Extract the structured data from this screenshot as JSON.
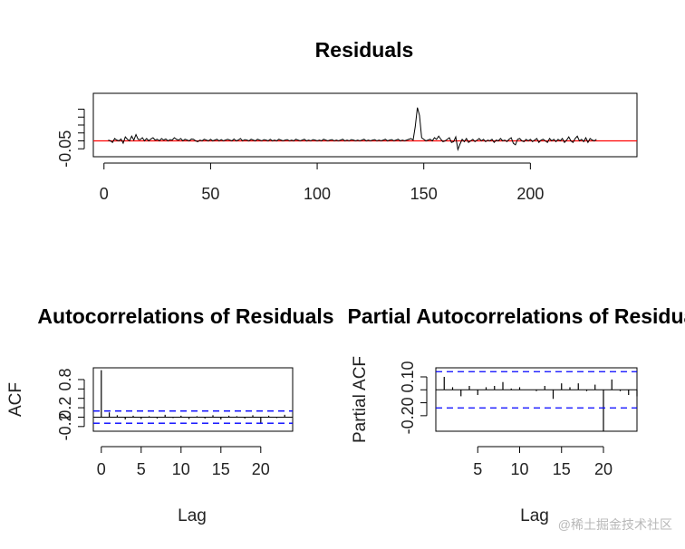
{
  "chart_data": [
    {
      "type": "line",
      "title": "Residuals",
      "xlabel": "",
      "ylabel": "",
      "xlim": [
        -5,
        250
      ],
      "ylim": [
        -0.1,
        0.3
      ],
      "x_ticks": [
        0,
        50,
        100,
        150,
        200
      ],
      "x_tick_labels": [
        "0",
        "50",
        "100",
        "150",
        "200"
      ],
      "y_ticks": [
        -0.05
      ],
      "y_tick_labels": [
        "-0.05"
      ],
      "y_minor_ticks": [
        0.0,
        0.05,
        0.1,
        0.15,
        0.2
      ],
      "reference_line": {
        "y": 0,
        "color": "#ff0000"
      },
      "series_color": "#000000",
      "x_start": 2,
      "x_step": 1,
      "values": [
        0.005,
        0.0,
        -0.01,
        0.015,
        0.005,
        0.0,
        0.012,
        -0.015,
        0.025,
        0.01,
        0.0,
        0.03,
        0.005,
        0.04,
        0.01,
        0.008,
        0.02,
        0.0,
        0.015,
        0.0,
        0.012,
        0.02,
        0.005,
        0.01,
        0.0,
        0.015,
        0.005,
        0.012,
        0.0,
        0.008,
        0.005,
        0.02,
        0.01,
        0.005,
        0.015,
        0.0,
        0.01,
        0.005,
        0.0,
        0.012,
        0.01,
        0.0,
        -0.005,
        0.005,
        0.0,
        0.01,
        0.005,
        0.0,
        0.01,
        0.0,
        0.005,
        0.01,
        0.0,
        0.008,
        0.0,
        0.005,
        0.01,
        0.005,
        0.0,
        0.012,
        0.0,
        0.005,
        0.015,
        0.0,
        0.008,
        0.005,
        0.0,
        0.01,
        0.005,
        0.0,
        0.01,
        0.005,
        0.0,
        0.008,
        0.005,
        0.0,
        0.01,
        0.0,
        0.005,
        0.0,
        0.01,
        0.005,
        0.0,
        0.005,
        0.008,
        0.0,
        0.005,
        0.0,
        0.01,
        0.005,
        0.0,
        0.005,
        0.01,
        0.0,
        0.005,
        0.0,
        0.008,
        0.005,
        0.0,
        0.005,
        0.0,
        0.01,
        0.005,
        0.0,
        0.005,
        0.008,
        0.0,
        0.005,
        0.0,
        0.005,
        0.01,
        0.0,
        0.005,
        0.0,
        0.008,
        0.005,
        0.0,
        0.005,
        0.0,
        0.005,
        0.01,
        0.0,
        0.005,
        0.0,
        0.005,
        0.008,
        0.0,
        0.005,
        0.0,
        0.005,
        0.01,
        0.0,
        0.005,
        0.008,
        0.0,
        0.005,
        0.01,
        0.0,
        0.005,
        0.0,
        0.005,
        0.01,
        0.015,
        0.005,
        0.09,
        0.21,
        0.16,
        0.02,
        0.01,
        0.0,
        0.005,
        0.01,
        0.0,
        0.02,
        0.01,
        0.03,
        0.01,
        -0.005,
        0.0,
        0.01,
        0.02,
        -0.01,
        -0.005,
        0.025,
        -0.055,
        -0.02,
        0.01,
        -0.005,
        0.015,
        -0.01,
        0.0,
        0.01,
        -0.005,
        0.005,
        0.015,
        0.0,
        0.01,
        -0.005,
        0.005,
        0.0,
        0.01,
        -0.01,
        0.005,
        0.0,
        0.015,
        0.0,
        0.005,
        -0.005,
        0.01,
        0.02,
        -0.015,
        -0.025,
        0.01,
        0.015,
        0.0,
        -0.005,
        0.01,
        0.0,
        0.01,
        -0.005,
        0.005,
        0.015,
        -0.01,
        0.005,
        0.01,
        0.0,
        -0.01,
        0.015,
        0.0,
        0.01,
        -0.005,
        0.01,
        0.0,
        0.015,
        -0.01,
        0.005,
        0.025,
        0.0,
        -0.01,
        0.015,
        0.03,
        0.0,
        0.01,
        -0.005,
        0.02,
        -0.01,
        0.015,
        0.005,
        0.0,
        0.01
      ]
    },
    {
      "type": "bar",
      "title": "Autocorrelations of Residuals",
      "xlabel": "Lag",
      "ylabel": "ACF",
      "xlim": [
        -1,
        24
      ],
      "ylim": [
        -0.3,
        1.05
      ],
      "x_ticks": [
        0,
        5,
        10,
        15,
        20
      ],
      "x_tick_labels": [
        "0",
        "5",
        "10",
        "15",
        "20"
      ],
      "y_ticks": [
        -0.2,
        0.2,
        0.8
      ],
      "y_tick_labels": [
        "-0.2",
        "0.2",
        "0.8"
      ],
      "y_minor_ticks": [
        0.0,
        0.4,
        0.6
      ],
      "conf_band": [
        -0.13,
        0.13
      ],
      "conf_color": "#0000ff",
      "lags": [
        0,
        1,
        2,
        3,
        4,
        5,
        6,
        7,
        8,
        9,
        10,
        11,
        12,
        13,
        14,
        15,
        16,
        17,
        18,
        19,
        20,
        21,
        22,
        23
      ],
      "values": [
        1.0,
        0.1,
        0.04,
        -0.05,
        0.03,
        -0.04,
        0.02,
        -0.03,
        0.05,
        -0.02,
        0.03,
        -0.04,
        0.02,
        -0.03,
        0.04,
        -0.05,
        0.03,
        0.02,
        -0.03,
        0.04,
        -0.14,
        0.03,
        -0.02,
        0.05
      ]
    },
    {
      "type": "bar",
      "title": "Partial Autocorrelations of Residuals",
      "xlabel": "Lag",
      "ylabel": "Partial ACF",
      "xlim": [
        0,
        24
      ],
      "ylim": [
        -0.32,
        0.17
      ],
      "x_ticks": [
        5,
        10,
        15,
        20
      ],
      "x_tick_labels": [
        "5",
        "10",
        "15",
        "20"
      ],
      "y_ticks": [
        -0.2,
        0.1
      ],
      "y_tick_labels": [
        "-0.20",
        "0.10"
      ],
      "y_minor_ticks": [
        -0.1,
        0.0
      ],
      "conf_band": [
        -0.14,
        0.14
      ],
      "conf_color": "#0000ff",
      "lags": [
        1,
        2,
        3,
        4,
        5,
        6,
        7,
        8,
        9,
        10,
        11,
        12,
        13,
        14,
        15,
        16,
        17,
        18,
        19,
        20,
        21,
        22,
        23,
        24
      ],
      "values": [
        0.1,
        0.02,
        -0.05,
        0.03,
        -0.04,
        0.02,
        0.03,
        0.06,
        0.01,
        0.02,
        0.0,
        -0.01,
        0.03,
        -0.07,
        0.05,
        0.02,
        0.05,
        -0.01,
        0.04,
        -0.32,
        0.08,
        -0.01,
        -0.04,
        -0.05
      ]
    }
  ],
  "watermark": "@稀土掘金技术社区"
}
